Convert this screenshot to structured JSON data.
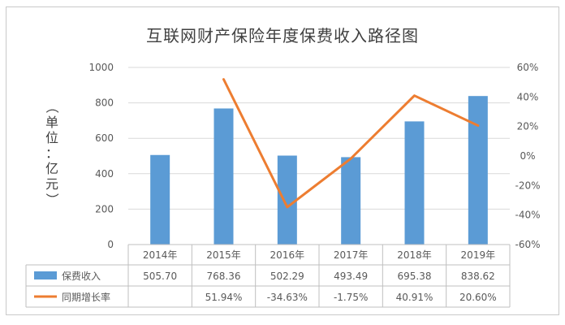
{
  "chart_data": {
    "type": "bar",
    "title": "互联网财产保险年度保费收入路径图",
    "ylabel": "（单位：亿元）",
    "categories": [
      "2014年",
      "2015年",
      "2016年",
      "2017年",
      "2018年",
      "2019年"
    ],
    "ylim": [
      0,
      1000
    ],
    "y2lim": [
      -60,
      60
    ],
    "yticks": [
      "0",
      "200",
      "400",
      "600",
      "800",
      "1000"
    ],
    "y2ticks": [
      "-60%",
      "-40%",
      "-20%",
      "0%",
      "20%",
      "40%",
      "60%"
    ],
    "series": [
      {
        "name": "保费收入",
        "type": "bar",
        "axis": "left",
        "color": "#5b9bd5",
        "values": [
          505.7,
          768.36,
          502.29,
          493.49,
          695.38,
          838.62
        ],
        "labels": [
          "505.70",
          "768.36",
          "502.29",
          "493.49",
          "695.38",
          "838.62"
        ]
      },
      {
        "name": "同期增长率",
        "type": "line",
        "axis": "right",
        "color": "#ed7d31",
        "values": [
          null,
          51.94,
          -34.63,
          -1.75,
          40.91,
          20.6
        ],
        "labels": [
          "",
          "51.94%",
          "-34.63%",
          "-1.75%",
          "40.91%",
          "20.60%"
        ]
      }
    ],
    "grid": true,
    "legend": "data-table"
  }
}
